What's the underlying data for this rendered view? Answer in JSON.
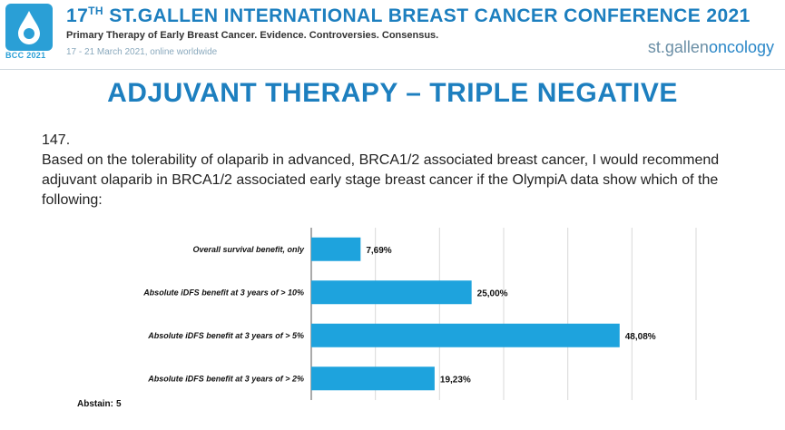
{
  "header": {
    "conference_title_num": "17",
    "conference_title_sup": "TH",
    "conference_title_rest": " ST.GALLEN INTERNATIONAL BREAST CANCER CONFERENCE 2021",
    "subtitle": "Primary Therapy of Early Breast Cancer. Evidence. Controversies. Consensus.",
    "dates": "17 - 21 March 2021, online worldwide",
    "logo_text": "BCC 2021",
    "brand_prefix": "st.gallen",
    "brand_suffix": "oncology"
  },
  "slide": {
    "title": "ADJUVANT THERAPY – TRIPLE NEGATIVE",
    "question_number": "147.",
    "question_text": "Based on the tolerability of olaparib in advanced, BRCA1/2 associated breast cancer, I would recommend adjuvant olaparib in BRCA1/2 associated early stage breast cancer if the OlympiA data show which of the following:"
  },
  "chart_data": {
    "type": "bar",
    "orientation": "horizontal",
    "categories": [
      "Overall survival benefit, only",
      "Absolute iDFS benefit at 3 years of > 10%",
      "Absolute iDFS benefit at 3 years of > 5%",
      "Absolute iDFS benefit at 3 years of > 2%"
    ],
    "values": [
      7.69,
      25.0,
      48.08,
      19.23
    ],
    "value_labels": [
      "7,69%",
      "25,00%",
      "48,08%",
      "19,23%"
    ],
    "xlim": [
      0,
      60
    ],
    "grid": "vertical",
    "bar_color": "#1ea3dd"
  },
  "footer": {
    "abstain_label": "Abstain:",
    "abstain_value": "5"
  }
}
